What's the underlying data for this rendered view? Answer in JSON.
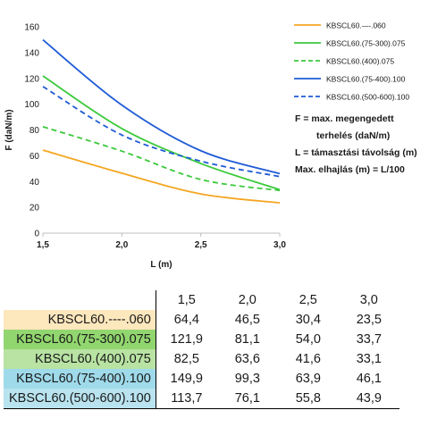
{
  "chart_data": {
    "type": "line",
    "ylabel": "F (daN/m)",
    "xlabel": "L (m)",
    "x": [
      1.5,
      2.0,
      2.5,
      3.0
    ],
    "x_tick_labels": [
      "1,5",
      "2,0",
      "2,5",
      "3,0"
    ],
    "y_ticks": [
      0,
      20,
      40,
      60,
      80,
      100,
      120,
      140,
      160
    ],
    "xlim": [
      1.5,
      3.0
    ],
    "ylim": [
      0,
      160
    ],
    "grid": false,
    "legend_position": "right",
    "series": [
      {
        "name": "KBSCL60.-–-.060",
        "values": [
          64.4,
          46.5,
          30.4,
          23.5
        ],
        "color": "#f5a623",
        "dash": "solid"
      },
      {
        "name": "KBSCL60.(75-300).075",
        "values": [
          121.9,
          81.1,
          54.0,
          33.7
        ],
        "color": "#3bc93b",
        "dash": "solid"
      },
      {
        "name": "KBSCL60.(400).075",
        "values": [
          82.5,
          63.6,
          41.6,
          33.1
        ],
        "color": "#3bc93b",
        "dash": "dashed"
      },
      {
        "name": "KBSCL60.(75-400).100",
        "values": [
          149.9,
          99.3,
          63.9,
          46.1
        ],
        "color": "#1f5bd6",
        "dash": "solid"
      },
      {
        "name": "KBSCL60.(500-600).100",
        "values": [
          113.7,
          76.1,
          55.8,
          43.9
        ],
        "color": "#1f5bd6",
        "dash": "dashed"
      }
    ]
  },
  "notes": {
    "line1": "F = max. megengedett",
    "line2": "terhelés (daN/m)",
    "line3": "L = támasztási távolság (m)",
    "line4": "Max. elhajlás (m) = L/100"
  },
  "table": {
    "columns": [
      "1,5",
      "2,0",
      "2,5",
      "3,0"
    ],
    "rows": [
      {
        "name": "KBSCL60.----.060",
        "values": [
          "64,4",
          "46,5",
          "30,4",
          "23,5"
        ]
      },
      {
        "name": "KBSCL60.(75-300).075",
        "values": [
          "121,9",
          "81,1",
          "54,0",
          "33,7"
        ]
      },
      {
        "name": "KBSCL60.(400).075",
        "values": [
          "82,5",
          "63,6",
          "41,6",
          "33,1"
        ]
      },
      {
        "name": "KBSCL60.(75-400).100",
        "values": [
          "149,9",
          "99,3",
          "63,9",
          "46,1"
        ]
      },
      {
        "name": "KBSCL60.(500-600).100",
        "values": [
          "113,7",
          "76,1",
          "55,8",
          "43,9"
        ]
      }
    ]
  }
}
